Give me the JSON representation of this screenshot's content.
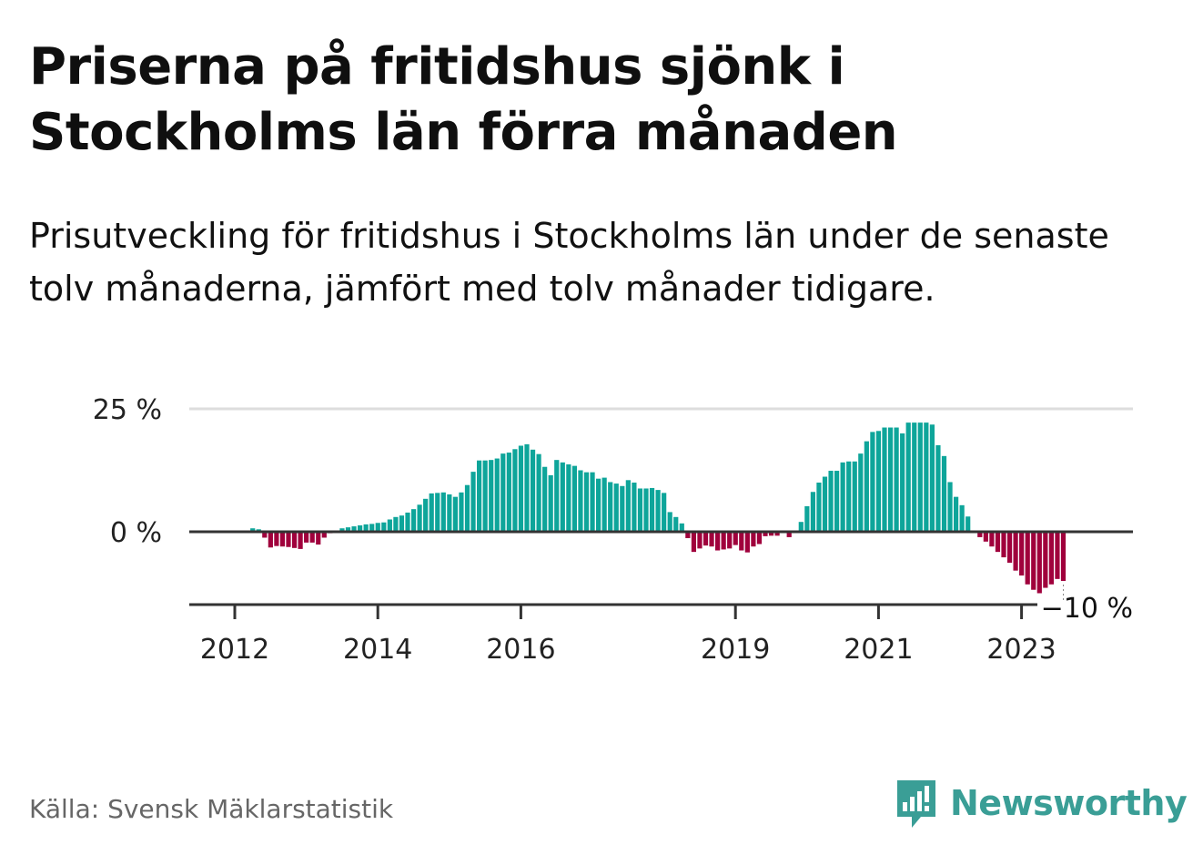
{
  "title": "Priserna på fritidshus sjönk i Stockholms län förra månaden",
  "subtitle": "Prisutveckling för fritidshus i Stockholms län under de senaste tolv månaderna, jämfört med tolv månader tidigare.",
  "source": "Källa: Svensk Mäklarstatistik",
  "brand": "Newsworthy",
  "colors": {
    "positive": "#0ea59a",
    "negative": "#a0003c",
    "brand": "#3a9e96",
    "axis": "#333333",
    "grid": "#dddddd"
  },
  "chart_data": {
    "type": "bar",
    "title": "Priserna på fritidshus sjönk i Stockholms län förra månaden",
    "ylabel": "",
    "ylim": [
      -15,
      25
    ],
    "yticks": [
      {
        "value": 25,
        "label": "25 %"
      },
      {
        "value": 0,
        "label": "0 %"
      }
    ],
    "xticks": [
      {
        "index": 0,
        "label": "2012"
      },
      {
        "index": 24,
        "label": "2014"
      },
      {
        "index": 48,
        "label": "2016"
      },
      {
        "index": 84,
        "label": "2019"
      },
      {
        "index": 108,
        "label": "2021"
      },
      {
        "index": 132,
        "label": "2023"
      }
    ],
    "grid": true,
    "last_value_label": "−10 %",
    "series": [
      {
        "name": "Prisutveckling",
        "start": "2012-01",
        "values": [
          0,
          0,
          0.7,
          0.5,
          -1.2,
          -3.2,
          -2.9,
          -3.0,
          -3.1,
          -3.3,
          -3.5,
          -2.2,
          -2.2,
          -2.6,
          -1.2,
          -0.3,
          0,
          0.7,
          0.9,
          1.1,
          1.3,
          1.5,
          1.6,
          1.8,
          1.9,
          2.5,
          3.0,
          3.3,
          3.9,
          4.6,
          5.5,
          6.7,
          7.8,
          7.9,
          8.0,
          7.6,
          7.1,
          8.0,
          9.5,
          12.2,
          14.5,
          14.5,
          14.6,
          14.9,
          15.9,
          16.1,
          16.8,
          17.5,
          17.8,
          16.7,
          15.8,
          13.2,
          11.5,
          14.6,
          14.1,
          13.7,
          13.4,
          12.5,
          12.1,
          12.1,
          10.8,
          11.0,
          10.1,
          9.8,
          9.3,
          10.5,
          10.0,
          8.8,
          8.8,
          8.9,
          8.5,
          7.9,
          4.0,
          3.0,
          1.7,
          -1.3,
          -4.1,
          -3.4,
          -2.8,
          -3.0,
          -3.8,
          -3.6,
          -3.4,
          -2.7,
          -3.8,
          -4.2,
          -3.0,
          -2.5,
          -0.9,
          -0.8,
          -0.8,
          -0.1,
          -1.1,
          0,
          2.0,
          5.2,
          8.1,
          10.0,
          11.2,
          12.4,
          12.4,
          14.1,
          14.3,
          14.3,
          15.9,
          18.4,
          20.3,
          20.5,
          21.2,
          21.2,
          21.2,
          20.0,
          22.2,
          22.2,
          22.2,
          22.2,
          21.8,
          17.6,
          15.4,
          10.1,
          7.1,
          5.4,
          3.1,
          0,
          -1.1,
          -2.0,
          -3.0,
          -4.1,
          -5.2,
          -6.3,
          -7.9,
          -8.9,
          -10.7,
          -11.8,
          -12.5,
          -11.4,
          -10.7,
          -9.6,
          -10.0
        ]
      }
    ]
  }
}
